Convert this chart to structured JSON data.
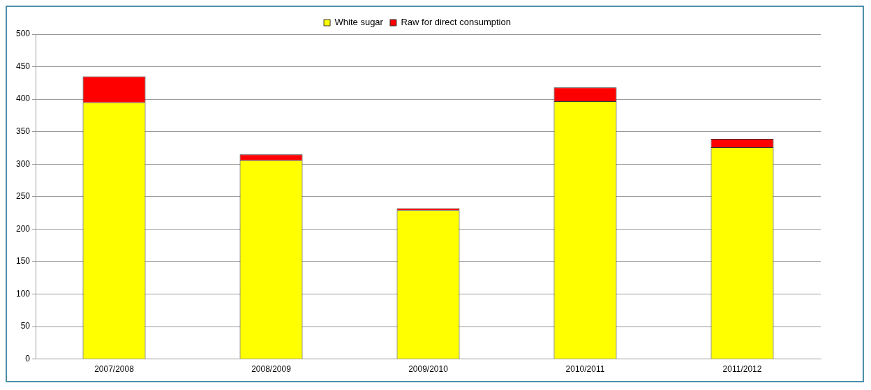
{
  "chart_data": {
    "type": "bar",
    "stacked": true,
    "categories": [
      "2007/2008",
      "2008/2009",
      "2009/2010",
      "2010/2011",
      "2011/2012"
    ],
    "series": [
      {
        "name": "White sugar",
        "color": "#ffff00",
        "values": [
          395,
          306,
          229,
          397,
          326
        ]
      },
      {
        "name": "Raw for direct consumption",
        "color": "#ff0000",
        "values": [
          40,
          9,
          3,
          21,
          13
        ]
      }
    ],
    "ylim": [
      0,
      500
    ],
    "yticks": [
      0,
      50,
      100,
      150,
      200,
      250,
      300,
      350,
      400,
      450,
      500
    ],
    "grid": "y",
    "legend": "top"
  }
}
